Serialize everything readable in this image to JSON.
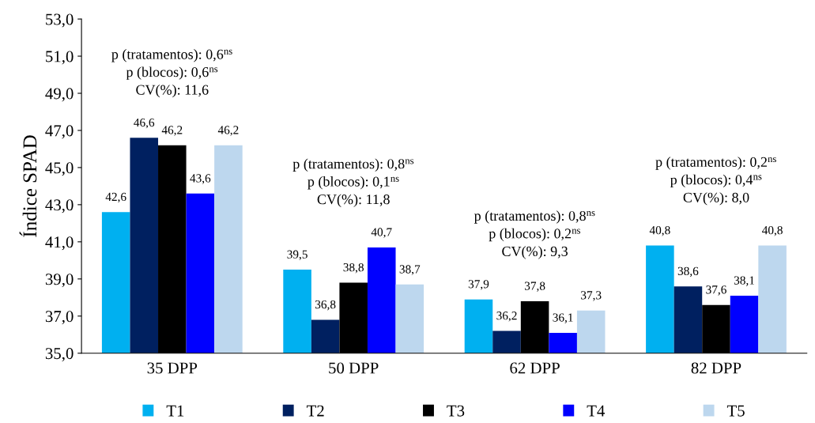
{
  "chart_data": {
    "type": "bar",
    "ylabel": "Índice SPAD",
    "categories": [
      "35 DPP",
      "50 DPP",
      "62 DPP",
      "82 DPP"
    ],
    "series": [
      {
        "name": "T1",
        "color": "#00b0f0",
        "values": [
          42.6,
          39.5,
          37.9,
          40.8
        ],
        "value_labels": [
          "42,6",
          "39,5",
          "37,9",
          "40,8"
        ]
      },
      {
        "name": "T2",
        "color": "#002060",
        "values": [
          46.6,
          36.8,
          36.2,
          38.6
        ],
        "value_labels": [
          "46,6",
          "36,8",
          "36,2",
          "38,6"
        ]
      },
      {
        "name": "T3",
        "color": "#000000",
        "values": [
          46.2,
          38.8,
          37.8,
          37.6
        ],
        "value_labels": [
          "46,2",
          "38,8",
          "37,8",
          "37,6"
        ]
      },
      {
        "name": "T4",
        "color": "#0000ff",
        "values": [
          43.6,
          40.7,
          36.1,
          38.1
        ],
        "value_labels": [
          "43,6",
          "40,7",
          "36,1",
          "38,1"
        ]
      },
      {
        "name": "T5",
        "color": "#bdd7ee",
        "values": [
          46.2,
          38.7,
          37.3,
          40.8
        ],
        "value_labels": [
          "46,2",
          "38,7",
          "37,3",
          "40,8"
        ]
      }
    ],
    "ylim": [
      35,
      53
    ],
    "yticks": [
      {
        "value": 35,
        "label": "35,0"
      },
      {
        "value": 37,
        "label": "37,0"
      },
      {
        "value": 39,
        "label": "39,0"
      },
      {
        "value": 41,
        "label": "41,0"
      },
      {
        "value": 43,
        "label": "43,0"
      },
      {
        "value": 45,
        "label": "45,0"
      },
      {
        "value": 47,
        "label": "47,0"
      },
      {
        "value": 49,
        "label": "49,0"
      },
      {
        "value": 51,
        "label": "51,0"
      },
      {
        "value": 53,
        "label": "53,0"
      }
    ],
    "annotations": [
      "p (tratamentos): 0,6$^{ns}$",
      "p (blocos): 0,6$^{ns}$",
      "CV(%): 11,6",
      "p (tratamentos): 0,8$^{ns}$",
      "p (blocos): 0,1$^{ns}$",
      "CV(%): 11,8",
      "p (tratamentos): 0,8$^{ns}$",
      "p (blocos): 0,2$^{ns}$",
      "CV(%): 9,3",
      "p (tratamentos): 0,2$^{ns}$",
      "p (blocos): 0,4$^{ns}$",
      "CV(%): 8,0"
    ],
    "grid": false,
    "legend": "bottom"
  }
}
